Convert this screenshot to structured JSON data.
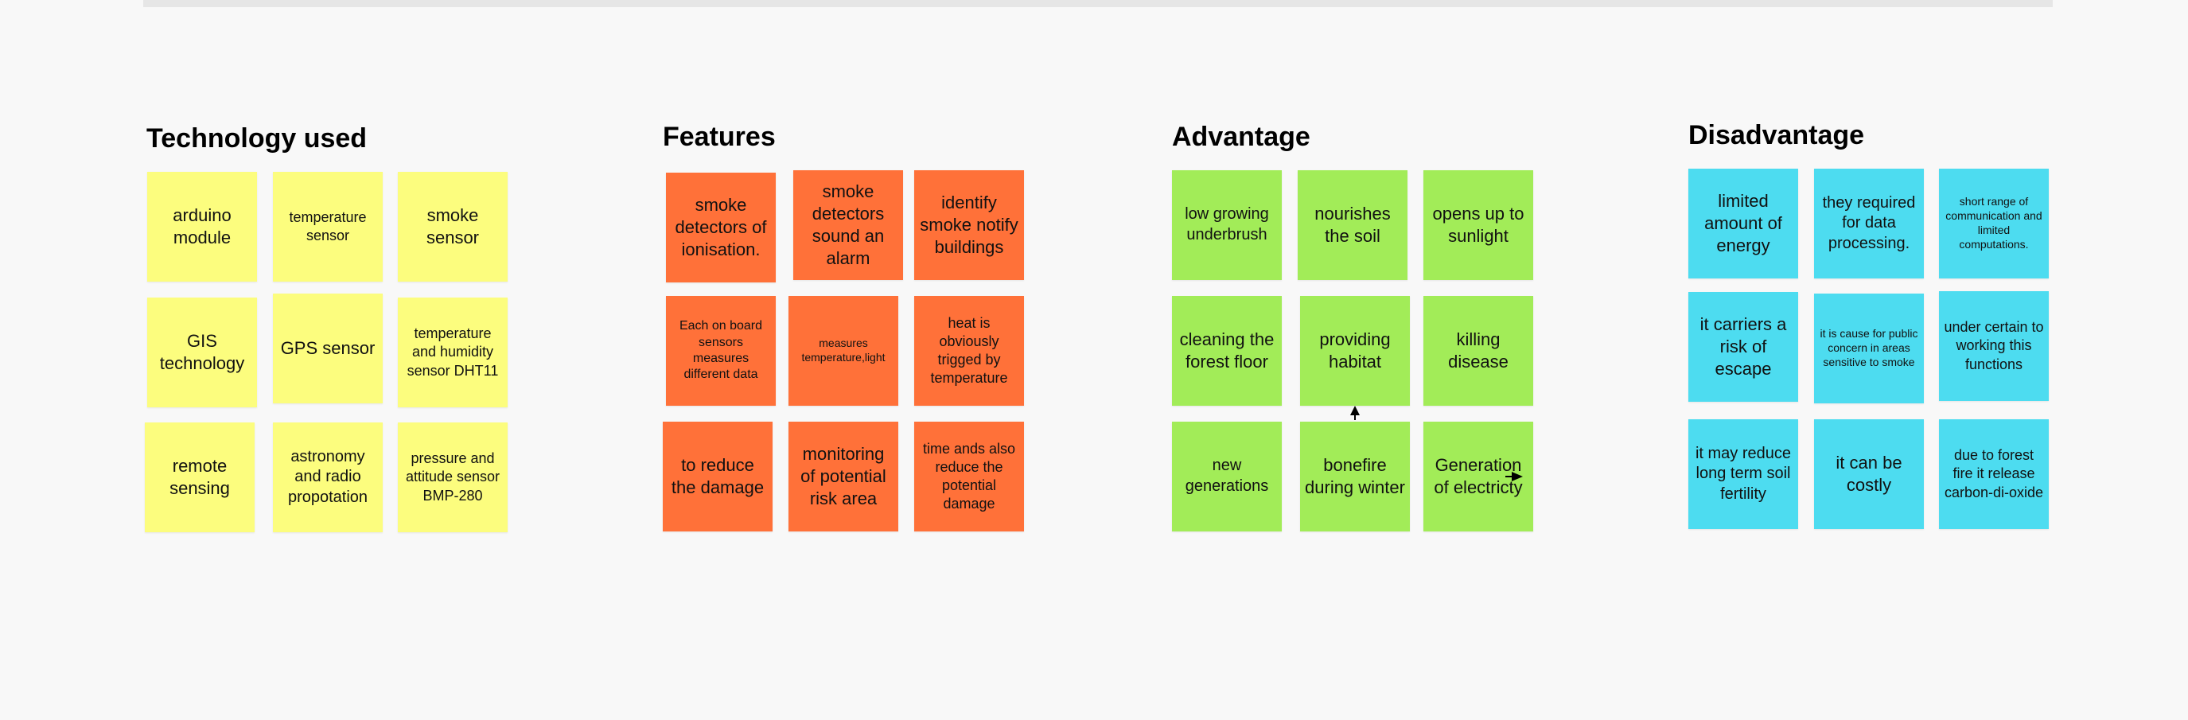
{
  "sections": {
    "technology": {
      "title": "Technology used",
      "notes": [
        "arduino module",
        "temperature sensor",
        "smoke sensor",
        "GIS technology",
        "GPS sensor",
        "temperature and humidity sensor DHT11",
        "remote sensing",
        "astronomy and radio propotation",
        "pressure and attitude sensor BMP-280"
      ]
    },
    "features": {
      "title": "Features",
      "notes": [
        "smoke detectors of ionisation.",
        "smoke detectors sound an alarm",
        "identify smoke notify buildings",
        "Each on board sensors measures different data",
        "measures temperature,light",
        "heat is obviously trigged by temperature",
        "to reduce the damage",
        "monitoring of potential risk area",
        "time ands also reduce the potential damage"
      ]
    },
    "advantage": {
      "title": "Advantage",
      "notes": [
        "low growing underbrush",
        "nourishes the soil",
        "opens up to sunlight",
        "cleaning the forest floor",
        "providing habitat",
        "killing disease",
        "new generations",
        "bonefire during winter",
        "Generation of electricty"
      ]
    },
    "disadvantage": {
      "title": "Disadvantage",
      "notes": [
        "limited amount of energy",
        "they required for data processing.",
        "short range of communication and limited computations.",
        "it carriers a risk of escape",
        "it is cause for public concern in areas sensitive to smoke",
        "under certain to working this functions",
        "it may reduce long term soil fertility",
        "it can be costly",
        "due to forest fire it release carbon-di-oxide"
      ]
    }
  },
  "colors": {
    "background": "#f8f8f8",
    "yellow_note": "#fcfd7e",
    "orange_note": "#ff7139",
    "green_note": "#a2ec58",
    "cyan_note": "#4ddcf0"
  },
  "icons": [
    "arrow-up-icon",
    "arrow-right-icon"
  ]
}
